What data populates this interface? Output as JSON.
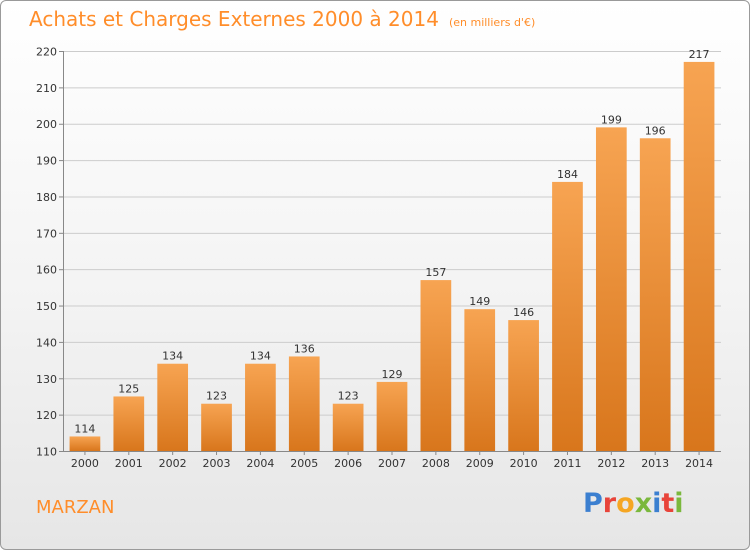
{
  "header": {
    "title": "Achats et Charges Externes 2000 à 2014",
    "subtitle": "(en milliers d'€)"
  },
  "footer": {
    "town": "MARZAN",
    "logo": {
      "letters": [
        "P",
        "r",
        "o",
        "x",
        "i",
        "t",
        "i"
      ],
      "colors": [
        "#3b7fd0",
        "#e8443a",
        "#f5a623",
        "#7ab83c",
        "#3b7fd0",
        "#e8443a",
        "#7ab83c"
      ]
    }
  },
  "chart_data": {
    "type": "bar",
    "title": "Achats et Charges Externes 2000 à 2014",
    "subtitle": "(en milliers d'€)",
    "categories": [
      "2000",
      "2001",
      "2002",
      "2003",
      "2004",
      "2005",
      "2006",
      "2007",
      "2008",
      "2009",
      "2010",
      "2011",
      "2012",
      "2013",
      "2014"
    ],
    "values": [
      114,
      125,
      134,
      123,
      134,
      136,
      123,
      129,
      157,
      149,
      146,
      184,
      199,
      196,
      217
    ],
    "ylim": [
      110,
      220
    ],
    "yticks": [
      110,
      120,
      130,
      140,
      150,
      160,
      170,
      180,
      190,
      200,
      210,
      220
    ],
    "grid": true,
    "bar_color_light": "#f7a452",
    "bar_color_dark": "#d8761c",
    "axis_color": "#888888",
    "grid_color": "#cccccc"
  }
}
